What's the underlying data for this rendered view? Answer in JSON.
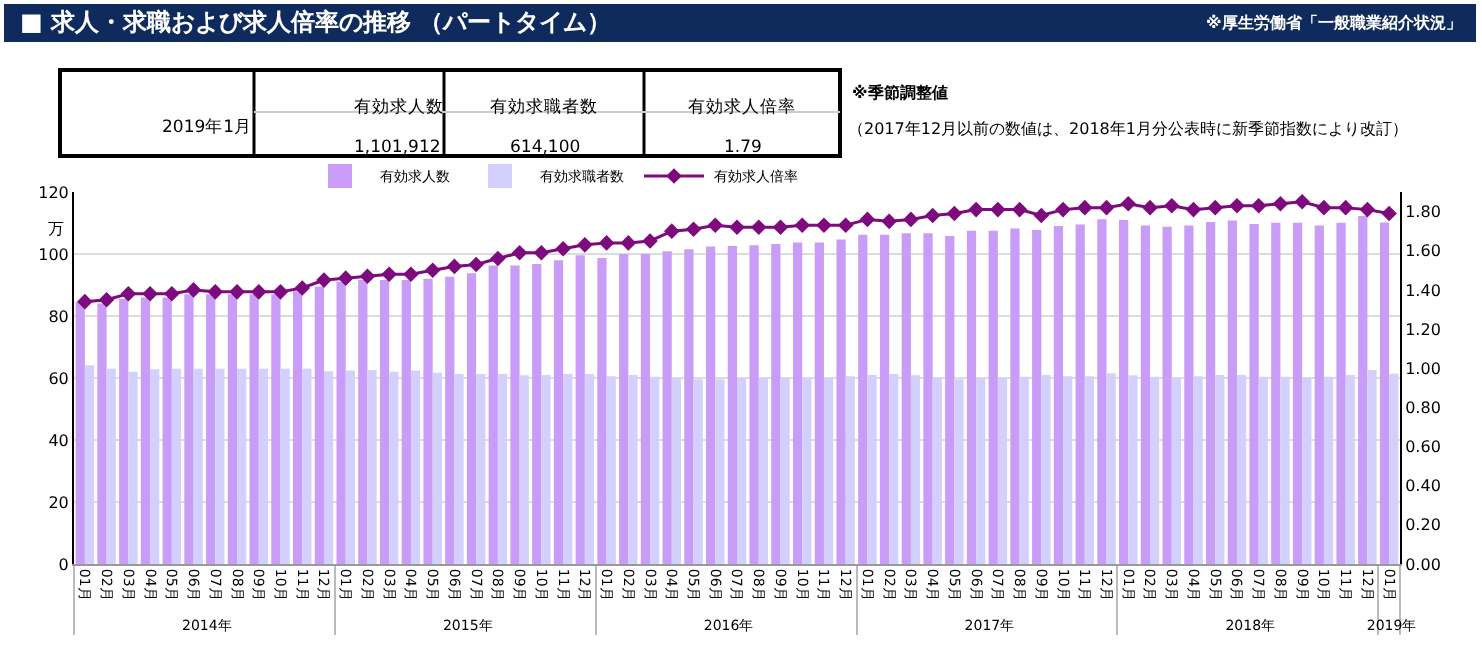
{
  "chart_data": {
    "type": "bar",
    "title": "■ 求人・求職および求人倍率の推移 （パートタイム）",
    "ylabel": "万",
    "categories": [
      "01月",
      "02月",
      "03月",
      "04月",
      "05月",
      "06月",
      "07月",
      "08月",
      "09月",
      "10月",
      "11月",
      "12月",
      "01月",
      "02月",
      "03月",
      "04月",
      "05月",
      "06月",
      "07月",
      "08月",
      "09月",
      "10月",
      "11月",
      "12月",
      "01月",
      "02月",
      "03月",
      "04月",
      "05月",
      "06月",
      "07月",
      "08月",
      "09月",
      "10月",
      "11月",
      "12月",
      "01月",
      "02月",
      "03月",
      "04月",
      "05月",
      "06月",
      "07月",
      "08月",
      "09月",
      "10月",
      "11月",
      "12月",
      "01月",
      "02月",
      "03月",
      "04月",
      "05月",
      "06月",
      "07月",
      "08月",
      "09月",
      "10月",
      "11月",
      "12月",
      "01月"
    ],
    "series": [
      {
        "name": "有効求人数",
        "color": "#c99cf7",
        "values": [
          84.5,
          84,
          85.6,
          86,
          86,
          87,
          87,
          87,
          87,
          87,
          88,
          89.5,
          91,
          91.6,
          91.6,
          91.6,
          92,
          92.7,
          93.8,
          96.3,
          96.3,
          96.8,
          98,
          99.6,
          98.7,
          100,
          100,
          100.9,
          101.5,
          102.4,
          102.6,
          102.8,
          103.2,
          103.7,
          103.7,
          104.7,
          106.2,
          106.2,
          106.7,
          106.7,
          105.8,
          107.5,
          107.5,
          108.2,
          107.7,
          109,
          109.5,
          111.2,
          111,
          109.2,
          108.8,
          109.2,
          110.3,
          110.8,
          109.7,
          110.1,
          110.1,
          109.2,
          110.1,
          112.3,
          110.2
        ]
      },
      {
        "name": "有効求職者数",
        "color": "#d3d0fd",
        "values": [
          64.1,
          63,
          62,
          62.8,
          63,
          63,
          63,
          63,
          63,
          63,
          63,
          62.2,
          62.4,
          62.6,
          62,
          62.4,
          61.7,
          61.3,
          61.3,
          61.3,
          60.9,
          61,
          61.3,
          61.3,
          60.6,
          61,
          60.4,
          60,
          59.6,
          59.6,
          60,
          60,
          60,
          60,
          60,
          60.6,
          61,
          61.3,
          60.9,
          60.2,
          59.6,
          60,
          60,
          60.4,
          61,
          60.6,
          60.6,
          61.5,
          60.9,
          60.4,
          60,
          60.6,
          61,
          61,
          60.4,
          60.4,
          60,
          60.4,
          61,
          62.6,
          61.4
        ]
      },
      {
        "name": "有効求人倍率",
        "type": "line",
        "axis": "y2",
        "color": "#7d0b7d",
        "values": [
          1.34,
          1.35,
          1.38,
          1.38,
          1.38,
          1.4,
          1.39,
          1.39,
          1.39,
          1.39,
          1.41,
          1.45,
          1.46,
          1.47,
          1.48,
          1.48,
          1.5,
          1.52,
          1.53,
          1.56,
          1.59,
          1.59,
          1.61,
          1.63,
          1.64,
          1.64,
          1.65,
          1.7,
          1.71,
          1.73,
          1.72,
          1.72,
          1.72,
          1.73,
          1.73,
          1.73,
          1.76,
          1.75,
          1.76,
          1.78,
          1.79,
          1.81,
          1.81,
          1.81,
          1.78,
          1.81,
          1.82,
          1.82,
          1.84,
          1.82,
          1.83,
          1.81,
          1.82,
          1.83,
          1.83,
          1.84,
          1.85,
          1.82,
          1.82,
          1.81,
          1.79
        ]
      }
    ],
    "ylim": [
      0,
      120
    ],
    "yticks": [
      0,
      20,
      40,
      60,
      80,
      100,
      120
    ],
    "y2lim": [
      0,
      1.9
    ],
    "y2ticks": [
      {
        "value": 0,
        "label": "0.00"
      },
      {
        "value": 0.2,
        "label": "0.20"
      },
      {
        "value": 0.4,
        "label": "0.40"
      },
      {
        "value": 0.6,
        "label": "0.60"
      },
      {
        "value": 0.8,
        "label": "0.80"
      },
      {
        "value": 1.0,
        "label": "1.00"
      },
      {
        "value": 1.2,
        "label": "1.20"
      },
      {
        "value": 1.4,
        "label": "1.40"
      },
      {
        "value": 1.6,
        "label": "1.60"
      },
      {
        "value": 1.8,
        "label": "1.80"
      }
    ],
    "grid": "y",
    "legend": "top",
    "marker": "diamond",
    "line_style": "solid",
    "annotations": [
      "2019年1月",
      "有効求人数",
      "1,101,912",
      "有効求職者数",
      "614,100",
      "有効求人倍率",
      "1.79",
      "※季節調整値",
      "（2017年12月以前の数値は、2018年1月分公表時に新季節指数により改訂）",
      "※厚生労働省「一般職業紹介状況」",
      "2014年",
      "2015年",
      "2016年",
      "2017年",
      "2018年",
      "2019年"
    ]
  }
}
